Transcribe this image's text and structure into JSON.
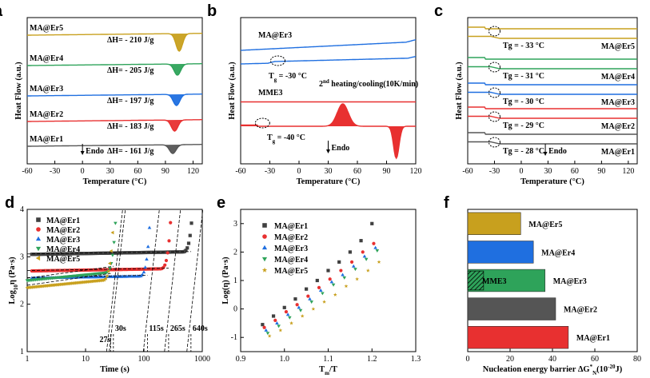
{
  "chart_data": [
    {
      "panel": "a",
      "type": "line",
      "xlabel": "Temperature (°C)",
      "ylabel": "Heat Flow (a.u.)",
      "xlim": [
        -60,
        130
      ],
      "xticks": [
        -60,
        -30,
        0,
        30,
        60,
        90,
        120
      ],
      "endo_label": "Endo",
      "series": [
        {
          "name": "MA@Er5",
          "color": "#c8a01e",
          "peak_temp": 105,
          "enthalpy": "ΔH= - 210 J/g"
        },
        {
          "name": "MA@Er4",
          "color": "#2ea35a",
          "peak_temp": 103,
          "enthalpy": "ΔH= - 205 J/g"
        },
        {
          "name": "MA@Er3",
          "color": "#1f6fe0",
          "peak_temp": 102,
          "enthalpy": "ΔH= - 197 J/g"
        },
        {
          "name": "MA@Er2",
          "color": "#e83030",
          "peak_temp": 100,
          "enthalpy": "ΔH= - 183 J/g"
        },
        {
          "name": "MA@Er1",
          "color": "#555555",
          "peak_temp": 98,
          "enthalpy": "ΔH= - 161 J/g"
        }
      ]
    },
    {
      "panel": "b",
      "type": "line",
      "xlabel": "Temperature (°C)",
      "ylabel": "Heat Flow (a.u.)",
      "xlim": [
        -60,
        120
      ],
      "xticks": [
        -60,
        -30,
        0,
        30,
        60,
        90,
        120
      ],
      "note_prefix": "2",
      "note_sup": "nd",
      "note_text": " heating/cooling(10K/min)",
      "endo_label": "Endo",
      "series": [
        {
          "name": "MA@Er3",
          "color": "#1f6fe0",
          "tg": "T",
          "tg_sub": "g",
          "tg_text": " = -30 °C"
        },
        {
          "name": "MME3",
          "color": "#e83030",
          "tg": "T",
          "tg_sub": "g",
          "tg_text": " = -40 °C",
          "exo_peak": 45,
          "endo_peak": 100
        }
      ]
    },
    {
      "panel": "c",
      "type": "line",
      "xlabel": "Temperature (°C)",
      "ylabel": "Heat Flow (a.u.)",
      "xlim": [
        -60,
        130
      ],
      "xticks": [
        -60,
        -30,
        0,
        30,
        60,
        90,
        120
      ],
      "endo_label": "Endo",
      "series": [
        {
          "name": "MA@Er5",
          "color": "#c8a01e",
          "tg": "Tg = - 33 °C"
        },
        {
          "name": "MA@Er4",
          "color": "#2ea35a",
          "tg": "Tg = - 31 °C"
        },
        {
          "name": "MA@Er3",
          "color": "#1f6fe0",
          "tg": "Tg = - 30 °C"
        },
        {
          "name": "MA@Er2",
          "color": "#e83030",
          "tg": "Tg = - 29 °C"
        },
        {
          "name": "MA@Er1",
          "color": "#555555",
          "tg": "Tg = - 28 °C"
        }
      ]
    },
    {
      "panel": "d",
      "type": "scatter",
      "xscale": "log",
      "xlim": [
        1,
        1000
      ],
      "ylim": [
        1,
        4
      ],
      "xticks": [
        1,
        10,
        100,
        1000
      ],
      "yticks": [
        1,
        2,
        3,
        4
      ],
      "xlabel": "Time (s)",
      "ylabel_prefix": "Log",
      "ylabel_sub": "10",
      "ylabel_mid": "η (Pa·s)",
      "gel_times": [
        "27s",
        "30s",
        "115s",
        "265s",
        "640s"
      ],
      "series": [
        {
          "name": "MA@Er1",
          "color": "#404040",
          "marker": "square",
          "baseline": 3.05,
          "gel_time": 640
        },
        {
          "name": "MA@Er2",
          "color": "#e83030",
          "marker": "circle",
          "baseline": 2.7,
          "gel_time": 265
        },
        {
          "name": "MA@Er3",
          "color": "#1f6fe0",
          "marker": "triangle-up",
          "baseline": 2.55,
          "gel_time": 115
        },
        {
          "name": "MA@Er4",
          "color": "#2ea35a",
          "marker": "triangle-down",
          "baseline": 2.5,
          "gel_time": 30
        },
        {
          "name": "MA@Er5",
          "color": "#c8a01e",
          "marker": "triangle-left",
          "baseline": 2.35,
          "gel_time": 27
        }
      ]
    },
    {
      "panel": "e",
      "type": "scatter",
      "xlim": [
        0.9,
        1.3
      ],
      "ylim": [
        -1.5,
        3.5
      ],
      "xticks": [
        0.9,
        1.0,
        1.1,
        1.2,
        1.3
      ],
      "yticks": [
        -1,
        0,
        1,
        2,
        3
      ],
      "xlabel_main": "T",
      "xlabel_sub": "m",
      "xlabel_tail": "/T",
      "ylabel": "Log(η) (Pa·s)",
      "x": [
        0.95,
        0.975,
        1.0,
        1.025,
        1.05,
        1.075,
        1.1,
        1.125,
        1.15,
        1.175,
        1.2
      ],
      "series": [
        {
          "name": "MA@Er1",
          "color": "#404040",
          "marker": "square",
          "values": [
            -0.55,
            -0.25,
            0.05,
            0.35,
            0.7,
            1.0,
            1.35,
            1.65,
            2.0,
            2.4,
            3.0
          ]
        },
        {
          "name": "MA@Er2",
          "color": "#e83030",
          "marker": "circle",
          "values": [
            -0.65,
            -0.4,
            -0.1,
            0.15,
            0.45,
            0.75,
            1.05,
            1.35,
            1.65,
            2.0,
            2.3
          ]
        },
        {
          "name": "MA@Er3",
          "color": "#1f6fe0",
          "marker": "triangle-up",
          "values": [
            -0.75,
            -0.5,
            -0.2,
            0.05,
            0.35,
            0.65,
            0.95,
            1.2,
            1.5,
            1.85,
            2.15
          ]
        },
        {
          "name": "MA@Er4",
          "color": "#2ea35a",
          "marker": "triangle-down",
          "values": [
            -0.85,
            -0.6,
            -0.3,
            -0.05,
            0.25,
            0.55,
            0.85,
            1.1,
            1.4,
            1.75,
            2.05
          ]
        },
        {
          "name": "MA@Er5",
          "color": "#c8a01e",
          "marker": "star",
          "values": [
            -0.95,
            -0.75,
            -0.5,
            -0.25,
            0.0,
            0.25,
            0.5,
            0.8,
            1.05,
            1.35,
            1.65
          ]
        }
      ]
    },
    {
      "panel": "f",
      "type": "bar",
      "orientation": "horizontal",
      "xlim": [
        0,
        80
      ],
      "xticks": [
        0,
        20,
        40,
        60,
        80
      ],
      "xlabel_prefix": "Nucleation energy barrier ΔG",
      "xlabel_sup": "*",
      "xlabel_sub": "N",
      "xlabel_unit": "(10",
      "xlabel_exp": "-20",
      "xlabel_end": "J)",
      "categories": [
        "MA@Er5",
        "MA@Er4",
        "MA@Er3",
        "MA@Er2",
        "MA@Er1"
      ],
      "values": [
        25,
        31,
        36.5,
        41.5,
        47.5
      ],
      "colors": [
        "#c8a01e",
        "#1f6fe0",
        "#2ea35a",
        "#555555",
        "#e83030"
      ],
      "inset_label": "MME3",
      "inset_value": 7.5
    }
  ]
}
